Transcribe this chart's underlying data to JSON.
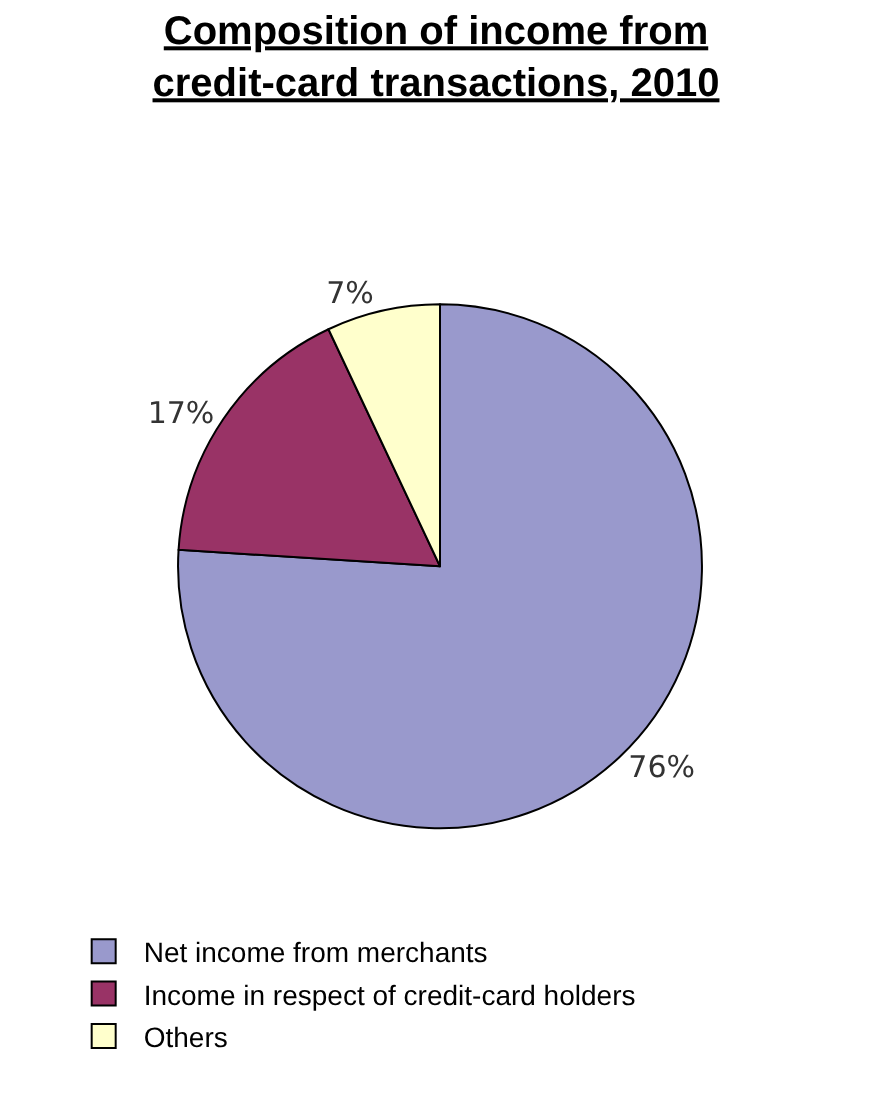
{
  "chart_data": {
    "type": "pie",
    "title": "Composition of income from\ncredit-card transactions, 2010",
    "categories": [
      "Net income from merchants",
      "Income in respect of credit-card holders",
      "Others"
    ],
    "values": [
      76,
      17,
      7
    ],
    "value_labels": [
      "76%",
      "17%",
      "7%"
    ],
    "colors": [
      "#9999cc",
      "#993366",
      "#ffffcc"
    ],
    "legend": "bottom"
  }
}
